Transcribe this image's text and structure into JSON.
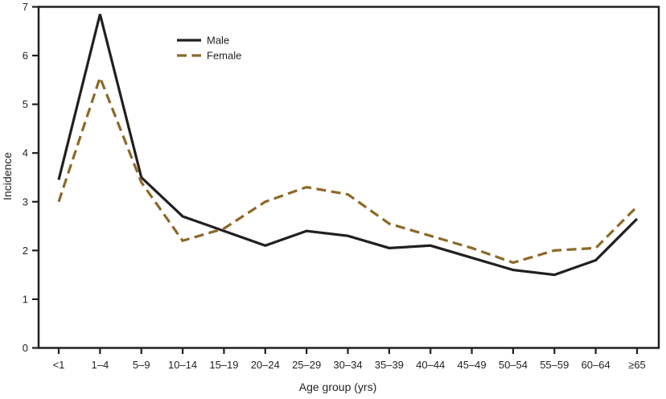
{
  "colors": {
    "background": "#ffffff",
    "axis": "#231f20",
    "text": "#231f20"
  },
  "chart_data": {
    "type": "line",
    "title": "",
    "xlabel": "Age group (yrs)",
    "ylabel": "Incidence",
    "categories": [
      "<1",
      "1–4",
      "5–9",
      "10–14",
      "15–19",
      "20–24",
      "25–29",
      "30–34",
      "35–39",
      "40–44",
      "45–49",
      "50–54",
      "55–59",
      "60–64",
      "≥65"
    ],
    "yticks": [
      0,
      1,
      2,
      3,
      4,
      5,
      6,
      7
    ],
    "ylim": [
      0,
      7
    ],
    "grid": false,
    "plot_border": "box",
    "legend_position": "top-left-inside",
    "series": [
      {
        "name": "Male",
        "color": "#231f20",
        "dash": null,
        "values": [
          3.45,
          6.85,
          3.5,
          2.7,
          2.4,
          2.1,
          2.4,
          2.3,
          2.05,
          2.1,
          1.85,
          1.6,
          1.5,
          1.8,
          2.65
        ]
      },
      {
        "name": "Female",
        "color": "#8c6928",
        "dash": [
          12,
          6.5
        ],
        "values": [
          3.0,
          5.55,
          3.4,
          2.2,
          2.45,
          3.0,
          3.3,
          3.15,
          2.55,
          2.3,
          2.05,
          1.75,
          2.0,
          2.05,
          2.9
        ]
      }
    ]
  }
}
